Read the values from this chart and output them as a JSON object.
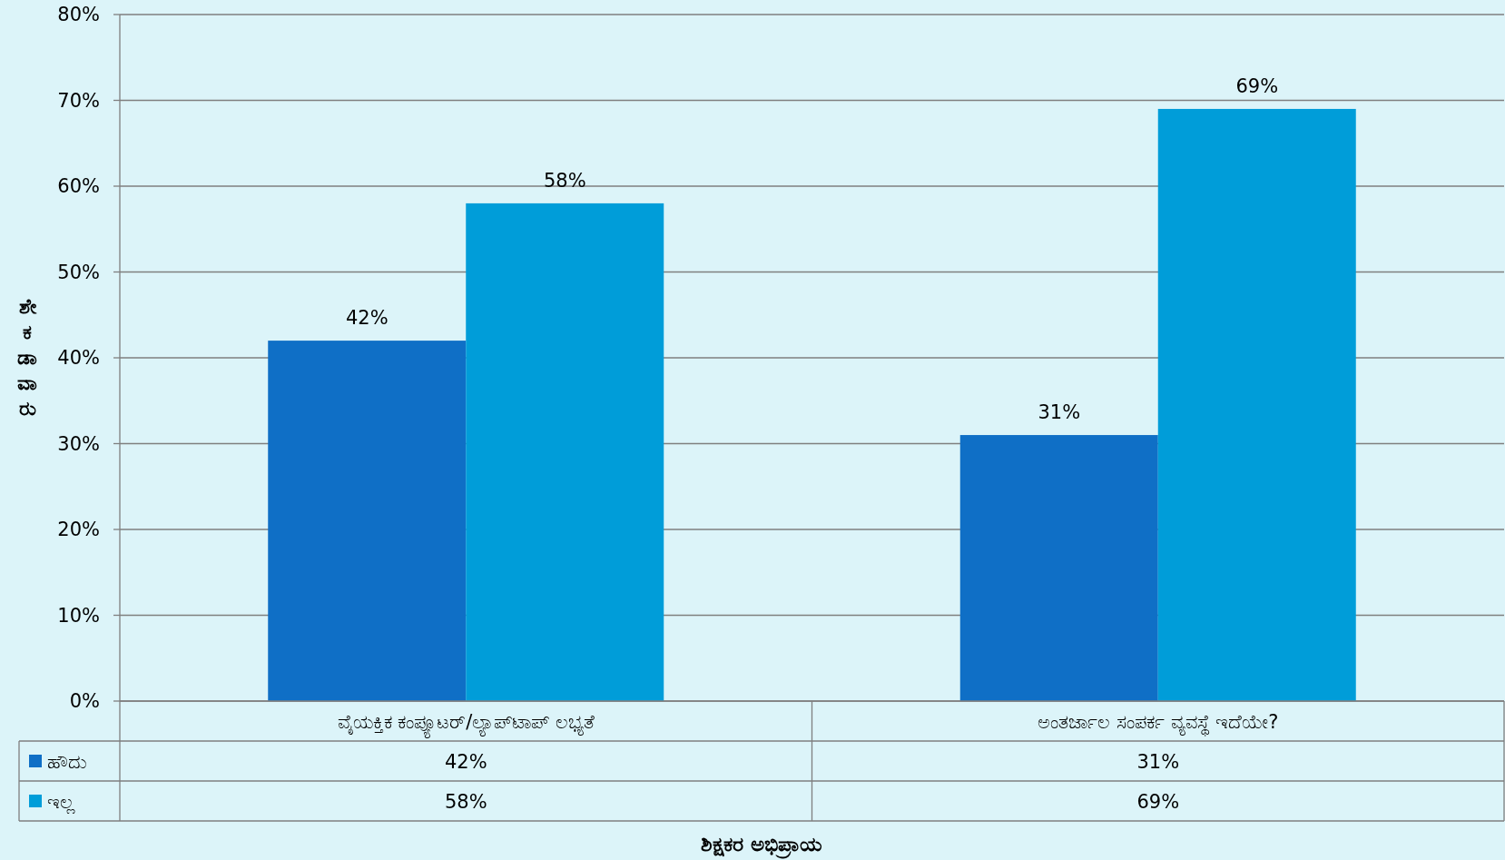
{
  "chart_data": {
    "type": "bar",
    "xlabel": "ಶಿಕ್ಷಕರ ಅಭಿಪ್ರಾಯ",
    "ylabel": "ಶೇಕಡಾವಾರು",
    "categories": [
      "ವೈಯಕ್ತಿಕ ಕಂಪ್ಯೂಟರ್/ಲ್ಯಾಪ್‌ಟಾಪ್ ಲಭ್ಯತೆ",
      "ಅಂತರ್ಜಾಲ ಸಂಪರ್ಕ ವ್ಯವಸ್ಥೆ ಇದೆಯೇ?"
    ],
    "series": [
      {
        "name": "ಹೌದು",
        "color": "#0f6fc6",
        "values": [
          42,
          31
        ],
        "value_labels": [
          "42%",
          "31%"
        ]
      },
      {
        "name": "ಇಲ್ಲ",
        "color": "#009dd9",
        "values": [
          58,
          69
        ],
        "value_labels": [
          "58%",
          "69%"
        ]
      }
    ],
    "ylim": [
      0,
      80
    ],
    "yticks": [
      {
        "value": 0,
        "label": "0%"
      },
      {
        "value": 10,
        "label": "10%"
      },
      {
        "value": 20,
        "label": "20%"
      },
      {
        "value": 30,
        "label": "30%"
      },
      {
        "value": 40,
        "label": "40%"
      },
      {
        "value": 50,
        "label": "50%"
      },
      {
        "value": 60,
        "label": "60%"
      },
      {
        "value": 70,
        "label": "70%"
      },
      {
        "value": 80,
        "label": "80%"
      }
    ],
    "grid": "y",
    "legend": "bottom left"
  }
}
